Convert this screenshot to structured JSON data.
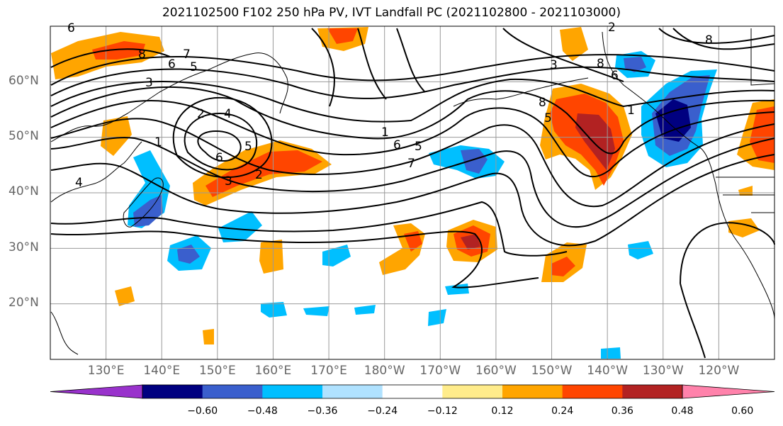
{
  "title": "2021102500 F102 250 hPa PV, IVT Landfall PC (2021102800 - 2021103000)",
  "map": {
    "projection": "cylindrical",
    "lon_range_east": [
      120,
      250
    ],
    "lat_range": [
      10,
      70
    ],
    "lat_labels": [
      "60°N",
      "50°N",
      "40°N",
      "30°N",
      "20°N"
    ],
    "lon_labels": [
      "130°E",
      "140°E",
      "150°E",
      "160°E",
      "170°E",
      "180°W",
      "170°W",
      "160°W",
      "150°W",
      "140°W",
      "130°W",
      "120°W"
    ],
    "gridline_color": "#999999",
    "contour_color": "#000000",
    "contour_labels": [
      "8",
      "7",
      "6",
      "5",
      "3",
      "2",
      "4",
      "1",
      "6",
      "5",
      "4",
      "3",
      "2",
      "1",
      "6",
      "5",
      "7",
      "3",
      "8",
      "6",
      "5",
      "8",
      "1",
      "2",
      "8",
      "6"
    ]
  },
  "colorbar": {
    "extend": "both",
    "colors": [
      "#9932cc",
      "#000080",
      "#3a5fcd",
      "#00bfff",
      "#b0e2ff",
      "#ffffff",
      "#ffec8b",
      "#ffa500",
      "#ff4500",
      "#b22222",
      "#ff82ab"
    ],
    "tick_labels": [
      "−0.60",
      "−0.48",
      "−0.36",
      "−0.24",
      "−0.12",
      "0.12",
      "0.24",
      "0.36",
      "0.48",
      "0.60"
    ]
  }
}
